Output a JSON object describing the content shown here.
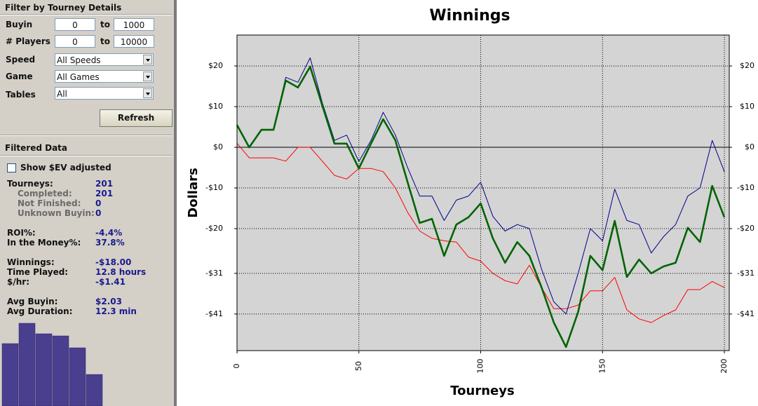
{
  "filter": {
    "title": "Filter by Tourney Details",
    "ranges": [
      {
        "label": "Buyin",
        "min": 0,
        "sep": "to",
        "max": 1000
      },
      {
        "label": "# Players",
        "min": 0,
        "sep": "to",
        "max": 10000
      }
    ],
    "selects": [
      {
        "label": "Speed",
        "value": "All Speeds"
      },
      {
        "label": "Game",
        "value": "All Games"
      },
      {
        "label": "Tables",
        "value": "All"
      }
    ],
    "button": "Refresh"
  },
  "filtered": {
    "title": "Filtered Data",
    "checkbox": "Show $EV adjusted",
    "stats": [
      [
        {
          "label": "Tourneys:",
          "value": "201"
        },
        {
          "label": "Completed:",
          "value": "201"
        },
        {
          "label": "Not Finished:",
          "value": "0"
        },
        {
          "label": "Unknown Buyin:",
          "value": "0"
        }
      ],
      [
        {
          "label": "ROI%:",
          "value": "-4.4%"
        },
        {
          "label": "In the Money%:",
          "value": "37.8%"
        }
      ],
      [
        {
          "label": "Winnings:",
          "value": "-$18.00"
        },
        {
          "label": "Time Played:",
          "value": "12.8 hours"
        },
        {
          "label": "$/hr:",
          "value": "-$1.41"
        }
      ],
      [
        {
          "label": "Avg Buyin:",
          "value": "$2.03"
        },
        {
          "label": "Avg Duration:",
          "value": "12.3 min"
        }
      ]
    ],
    "mini_chart": {
      "type": "bar",
      "values": [
        89,
        118,
        103,
        100,
        83,
        45
      ],
      "color": "#4a3f8f"
    }
  },
  "chart_data": {
    "type": "line",
    "title": "Winnings",
    "x_label": "Tourneys",
    "y_label": "Dollars",
    "x": [
      0,
      5,
      10,
      15,
      20,
      25,
      30,
      35,
      40,
      45,
      50,
      55,
      60,
      65,
      70,
      75,
      80,
      85,
      90,
      95,
      100,
      105,
      110,
      115,
      120,
      125,
      130,
      135,
      140,
      145,
      150,
      155,
      160,
      165,
      170,
      175,
      180,
      185,
      190,
      195,
      200
    ],
    "series": [
      {
        "color": "#ff0000",
        "values": [
          1,
          -2.6,
          -2.6,
          -2.6,
          -3.4,
          0,
          0,
          -3.4,
          -6.9,
          -7.8,
          -5.2,
          -5.2,
          -6,
          -10,
          -16,
          -20.6,
          -22.4,
          -23,
          -23.3,
          -27,
          -28,
          -31,
          -32.8,
          -33.6,
          -29,
          -34.5,
          -39.7,
          -39.7,
          -38.8,
          -35.3,
          -35.3,
          -32,
          -40,
          -42.2,
          -43.1,
          -41.4,
          -40,
          -35,
          -35,
          -33,
          -34.5
        ]
      },
      {
        "color": "#00008b",
        "values": [
          5.5,
          0,
          4.3,
          4.3,
          17.2,
          16,
          22,
          11,
          1.7,
          3,
          -3.5,
          1.7,
          8.6,
          3,
          -5,
          -12,
          -12,
          -18,
          -13,
          -12,
          -8.6,
          -17,
          -20.6,
          -19,
          -20,
          -30,
          -38,
          -41,
          -31,
          -20,
          -23,
          -10.3,
          -18,
          -19,
          -26,
          -22,
          -19,
          -12,
          -10,
          1.7,
          -6
        ]
      },
      {
        "color": "#006400",
        "values": [
          5.5,
          0,
          4.3,
          4.3,
          16.4,
          14.7,
          19.8,
          10.3,
          0.9,
          0.9,
          -5.2,
          0.9,
          6.9,
          1.7,
          -8.6,
          -18.6,
          -17.6,
          -26.7,
          -19,
          -17.2,
          -13.8,
          -22.4,
          -28.4,
          -23.3,
          -26.7,
          -34.5,
          -43.1,
          -49.1,
          -40.5,
          -26.7,
          -30.2,
          -18.1,
          -31.9,
          -27.6,
          -31,
          -29.3,
          -28.4,
          -19.8,
          -23.3,
          -9.5,
          -17.2
        ]
      }
    ],
    "xlim": [
      0,
      202
    ],
    "ylim": [
      -50,
      27.6
    ],
    "xticks": [
      0,
      50,
      100,
      150,
      200
    ],
    "yticks": [
      {
        "value": 20,
        "label": "$20"
      },
      {
        "value": 10,
        "label": "$10"
      },
      {
        "value": 0,
        "label": "$0"
      },
      {
        "value": -10,
        "label": "-$10"
      },
      {
        "value": -20,
        "label": "-$20"
      },
      {
        "value": -31,
        "label": "-$31"
      },
      {
        "value": -41,
        "label": "-$41"
      }
    ],
    "grid": true
  }
}
